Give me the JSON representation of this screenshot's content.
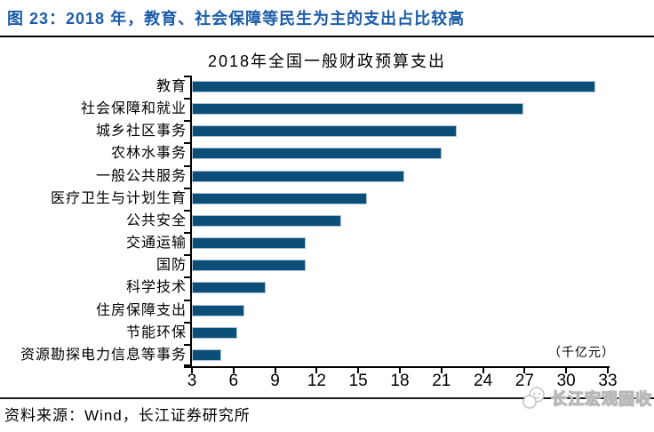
{
  "header": {
    "title": "图 23：2018 年，教育、社会保障等民生为主的支出占比较高"
  },
  "chart_data": {
    "type": "bar",
    "orientation": "horizontal",
    "title": "2018年全国一般财政预算支出",
    "unit_label": "（千亿元）",
    "categories": [
      "教育",
      "社会保障和就业",
      "城乡社区事务",
      "农林水事务",
      "一般公共服务",
      "医疗卫生与计划生育",
      "公共安全",
      "交通运输",
      "国防",
      "科学技术",
      "住房保障支出",
      "节能环保",
      "资源勘探电力信息等事务"
    ],
    "values": [
      32.1,
      26.9,
      22.1,
      21.0,
      18.3,
      15.6,
      13.8,
      11.2,
      11.2,
      8.3,
      6.8,
      6.3,
      5.1
    ],
    "xlim": [
      3,
      33
    ],
    "xticks": [
      3,
      6,
      9,
      12,
      15,
      18,
      21,
      24,
      27,
      30,
      33
    ],
    "grid": false,
    "legend_position": "none",
    "bar_color": "#0b4f78"
  },
  "footer": {
    "source": "资料来源：Wind，长江证券研究所",
    "watermark": "长江宏观固收"
  },
  "colors": {
    "header_blue": "#1b5ca8",
    "bar_blue": "#0b4f78",
    "bar_border": "#aec3d4"
  }
}
